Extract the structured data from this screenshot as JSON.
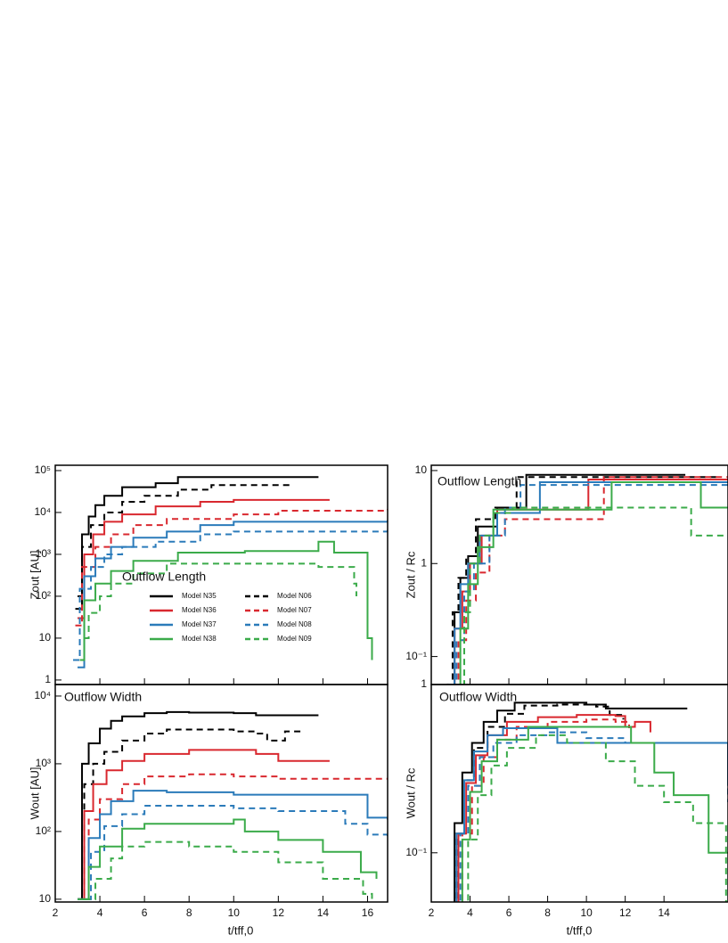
{
  "chart_data": [
    {
      "type": "line",
      "drawstyle": "steps-post",
      "ylog": true,
      "annotation": "Outflow Length",
      "ylabel": "Zout [AU]",
      "xlim": [
        2,
        16.9
      ],
      "ylim": [
        0.78,
        134000
      ],
      "yticks": [
        1,
        10,
        {
          "value": 100,
          "label": "10²"
        },
        {
          "value": 1000,
          "label": "10³"
        },
        {
          "value": 10000,
          "label": "10⁴"
        },
        {
          "value": 100000,
          "label": "10⁵"
        }
      ],
      "legend": true,
      "legend_loc": "lower center",
      "series": [
        {
          "name": "Model N35",
          "color": "#000000",
          "dash": false,
          "x": [
            3.0,
            3.2,
            3.5,
            3.8,
            4.2,
            5,
            6.5,
            7.5,
            13.8
          ],
          "values": [
            100,
            3000,
            8000,
            15000,
            25000,
            40000,
            50000,
            70000,
            70000
          ]
        },
        {
          "name": "Model N06",
          "color": "#000000",
          "dash": true,
          "x": [
            2.9,
            3.2,
            3.6,
            4.2,
            5,
            6,
            7.5,
            9,
            12.5
          ],
          "values": [
            50,
            1500,
            5000,
            10000,
            18000,
            25000,
            35000,
            45000,
            45000
          ]
        },
        {
          "name": "Model N36",
          "color": "#d9282f",
          "dash": false,
          "x": [
            3.0,
            3.3,
            3.7,
            4.2,
            5,
            6.5,
            8.5,
            10,
            14.3
          ],
          "values": [
            30,
            1000,
            3000,
            6000,
            9000,
            14000,
            18000,
            20000,
            20000
          ]
        },
        {
          "name": "Model N07",
          "color": "#d9282f",
          "dash": true,
          "x": [
            2.9,
            3.2,
            3.8,
            4.5,
            5.5,
            7,
            10,
            12,
            16.9
          ],
          "values": [
            20,
            500,
            1500,
            3000,
            5000,
            7000,
            9000,
            11000,
            12000
          ]
        },
        {
          "name": "Model N37",
          "color": "#2b7bba",
          "dash": false,
          "x": [
            3.0,
            3.3,
            3.8,
            4.5,
            5.5,
            7,
            8.5,
            10,
            16.9
          ],
          "values": [
            2,
            300,
            800,
            1500,
            2500,
            3500,
            5000,
            6000,
            6500
          ]
        },
        {
          "name": "Model N08",
          "color": "#2b7bba",
          "dash": true,
          "x": [
            2.8,
            3.1,
            3.6,
            4.2,
            5,
            6.5,
            8.5,
            10,
            16.9
          ],
          "values": [
            3,
            150,
            500,
            1000,
            1500,
            2000,
            3000,
            3500,
            3800
          ]
        },
        {
          "name": "Model N38",
          "color": "#3bab4a",
          "dash": false,
          "x": [
            3.1,
            3.3,
            3.8,
            4.5,
            5.5,
            7.5,
            10.5,
            13.8,
            14.5,
            16,
            16.2
          ],
          "values": [
            3,
            80,
            200,
            400,
            700,
            1100,
            1200,
            2000,
            1100,
            10,
            3
          ]
        },
        {
          "name": "Model N09",
          "color": "#3bab4a",
          "dash": true,
          "x": [
            3.3,
            3.5,
            4,
            4.5,
            5.5,
            7,
            12,
            13.8,
            15.4,
            15.5
          ],
          "values": [
            10,
            40,
            100,
            200,
            350,
            600,
            600,
            500,
            200,
            100
          ]
        }
      ]
    },
    {
      "type": "line",
      "drawstyle": "steps-post",
      "ylog": true,
      "annotation": "Outflow Width",
      "ylabel": "Wout [AU]",
      "xlabel": "t/tff,0",
      "xlim": [
        2,
        16.9
      ],
      "xticks": [
        2,
        4,
        6,
        8,
        10,
        12,
        14,
        16
      ],
      "ylim": [
        9.1,
        14800
      ],
      "yticks": [
        10,
        {
          "value": 100,
          "label": "10²"
        },
        {
          "value": 1000,
          "label": "10³"
        },
        {
          "value": 10000,
          "label": "10⁴"
        }
      ],
      "series": [
        {
          "color": "#000000",
          "dash": false,
          "x": [
            3.0,
            3.2,
            3.5,
            4,
            4.5,
            5,
            6,
            7,
            8,
            10,
            11,
            13.8
          ],
          "values": [
            10,
            1000,
            2000,
            3300,
            4300,
            5000,
            5600,
            5800,
            5700,
            5600,
            5200,
            5200
          ]
        },
        {
          "color": "#000000",
          "dash": true,
          "x": [
            3.0,
            3.3,
            3.7,
            4.2,
            5,
            6,
            7,
            9,
            10,
            11,
            11.5,
            12.3,
            13
          ],
          "values": [
            10,
            500,
            1000,
            1500,
            2200,
            2800,
            3200,
            3200,
            3000,
            2800,
            2200,
            3000,
            2900
          ]
        },
        {
          "color": "#d9282f",
          "dash": false,
          "x": [
            3.0,
            3.3,
            3.7,
            4.3,
            5,
            6,
            8,
            10,
            11,
            12,
            14.3
          ],
          "values": [
            10,
            200,
            500,
            800,
            1100,
            1400,
            1600,
            1600,
            1400,
            1100,
            1100
          ]
        },
        {
          "color": "#d9282f",
          "dash": true,
          "x": [
            3.0,
            3.5,
            4,
            5,
            6,
            8,
            10,
            12,
            14,
            16.9
          ],
          "values": [
            10,
            150,
            300,
            500,
            650,
            700,
            650,
            600,
            600,
            600
          ]
        },
        {
          "color": "#2b7bba",
          "dash": false,
          "x": [
            3.0,
            3.5,
            4,
            4.5,
            5.5,
            7,
            10,
            12,
            15.5,
            16,
            16.9
          ],
          "values": [
            10,
            80,
            180,
            280,
            400,
            380,
            350,
            350,
            350,
            160,
            150
          ]
        },
        {
          "color": "#2b7bba",
          "dash": true,
          "x": [
            3.0,
            3.6,
            4.2,
            5,
            6,
            8,
            10,
            12,
            15,
            16,
            16.9
          ],
          "values": [
            10,
            50,
            120,
            180,
            240,
            240,
            220,
            200,
            130,
            90,
            85
          ]
        },
        {
          "color": "#3bab4a",
          "dash": false,
          "x": [
            3.0,
            3.5,
            4,
            5,
            6,
            8,
            10,
            10.5,
            12,
            14,
            15.7,
            16.4
          ],
          "values": [
            10,
            30,
            60,
            110,
            130,
            130,
            150,
            100,
            75,
            50,
            25,
            20
          ]
        },
        {
          "color": "#3bab4a",
          "dash": true,
          "x": [
            3.3,
            3.8,
            4.5,
            5,
            6,
            8,
            10,
            12,
            14,
            15.8,
            16.2
          ],
          "values": [
            10,
            20,
            40,
            60,
            70,
            60,
            50,
            35,
            20,
            12,
            10
          ]
        }
      ]
    },
    {
      "type": "line",
      "drawstyle": "steps-post",
      "ylog": true,
      "annotation": "Outflow Length",
      "ylabel": "Zout / Rc",
      "xlim": [
        2,
        17.3
      ],
      "ylim": [
        0.05,
        11.4
      ],
      "yticks": [
        {
          "value": 0.1,
          "label": "10⁻¹"
        },
        1,
        10
      ],
      "series": [
        {
          "color": "#000000",
          "dash": false,
          "x": [
            2.9,
            3.2,
            3.5,
            3.9,
            4.4,
            5.4,
            6.9,
            15.1
          ],
          "values": [
            0.05,
            0.3,
            0.7,
            1.2,
            2.5,
            4,
            9,
            9
          ]
        },
        {
          "color": "#000000",
          "dash": true,
          "x": [
            2.8,
            3.1,
            3.4,
            3.8,
            4.3,
            5.3,
            6.4,
            16.8
          ],
          "values": [
            0.05,
            0.3,
            0.7,
            1.2,
            3,
            4,
            8.5,
            8.5
          ]
        },
        {
          "color": "#d9282f",
          "dash": false,
          "x": [
            2.9,
            3.2,
            3.6,
            4,
            4.6,
            5.4,
            10.1,
            17.3
          ],
          "values": [
            0.05,
            0.2,
            0.5,
            1,
            2,
            3.8,
            8,
            8
          ]
        },
        {
          "color": "#d9282f",
          "dash": true,
          "x": [
            3.1,
            3.4,
            3.8,
            4.3,
            5,
            5.8,
            10.9,
            17.3
          ],
          "values": [
            0.05,
            0.15,
            0.4,
            0.8,
            2,
            3,
            8.5,
            8.5
          ]
        },
        {
          "color": "#2b7bba",
          "dash": false,
          "x": [
            2.9,
            3.2,
            3.5,
            3.9,
            4.5,
            5.4,
            7.6,
            17.3
          ],
          "values": [
            0.05,
            0.2,
            0.6,
            1,
            2,
            3.5,
            7.5,
            7.5
          ]
        },
        {
          "color": "#2b7bba",
          "dash": true,
          "x": [
            3.0,
            3.3,
            3.7,
            4.2,
            5,
            5.8,
            6.6,
            17.3
          ],
          "values": [
            0.05,
            0.15,
            0.5,
            1,
            2,
            4,
            7,
            7
          ]
        },
        {
          "color": "#3bab4a",
          "dash": false,
          "x": [
            3.3,
            3.5,
            3.9,
            4.4,
            5.2,
            11.3,
            15.9,
            17.3
          ],
          "values": [
            0.05,
            0.2,
            0.6,
            1.5,
            3.8,
            7.5,
            4,
            4
          ]
        },
        {
          "color": "#3bab4a",
          "dash": true,
          "x": [
            3.6,
            3.7,
            4,
            4.5,
            5.2,
            6.2,
            15.4,
            17.3
          ],
          "values": [
            0.05,
            0.3,
            1,
            2,
            3.5,
            4,
            2,
            2
          ]
        }
      ]
    },
    {
      "type": "line",
      "drawstyle": "steps-post",
      "ylog": true,
      "annotation": "Outflow Width",
      "ylabel": "Wout / Rc",
      "xlabel": "t/tff,0",
      "xlim": [
        2,
        17.3
      ],
      "xticks": [
        2,
        4,
        6,
        8,
        10,
        12,
        14
      ],
      "ylim": [
        0.051,
        1.0
      ],
      "yticks": [
        {
          "value": 0.1,
          "label": "10⁻¹"
        },
        1
      ],
      "series": [
        {
          "color": "#000000",
          "dash": false,
          "x": [
            2.9,
            3.2,
            3.6,
            4.1,
            4.7,
            5.4,
            6.3,
            8,
            10,
            11,
            15.2
          ],
          "values": [
            0.05,
            0.15,
            0.3,
            0.45,
            0.6,
            0.7,
            0.78,
            0.78,
            0.76,
            0.72,
            0.72
          ]
        },
        {
          "color": "#000000",
          "dash": true,
          "x": [
            3.0,
            3.3,
            3.7,
            4.2,
            4.9,
            5.8,
            6.8,
            8.5,
            10.5,
            11.2,
            11.9
          ],
          "values": [
            0.05,
            0.13,
            0.27,
            0.42,
            0.56,
            0.67,
            0.75,
            0.76,
            0.74,
            0.66,
            0.62
          ]
        },
        {
          "color": "#d9282f",
          "dash": false,
          "x": [
            3.1,
            3.4,
            3.8,
            4.3,
            4.9,
            5.9,
            7.5,
            9.5,
            11.5,
            12,
            12.5,
            13.3
          ],
          "values": [
            0.05,
            0.13,
            0.26,
            0.38,
            0.5,
            0.6,
            0.64,
            0.66,
            0.65,
            0.56,
            0.6,
            0.52
          ]
        },
        {
          "color": "#d9282f",
          "dash": true,
          "x": [
            3.2,
            3.6,
            4.1,
            4.7,
            5.4,
            6.4,
            8,
            10,
            11.5,
            12.2
          ],
          "values": [
            0.05,
            0.13,
            0.25,
            0.37,
            0.47,
            0.56,
            0.6,
            0.62,
            0.6,
            0.55
          ]
        },
        {
          "color": "#2b7bba",
          "dash": false,
          "x": [
            3.0,
            3.3,
            3.7,
            4.2,
            4.9,
            5.7,
            8.5,
            17.2,
            17.3
          ],
          "values": [
            0.05,
            0.13,
            0.27,
            0.4,
            0.5,
            0.55,
            0.45,
            0.45,
            0.25
          ]
        },
        {
          "color": "#2b7bba",
          "dash": true,
          "x": [
            3.1,
            3.5,
            3.9,
            4.5,
            5.2,
            6.4,
            8,
            10,
            12,
            15.8,
            17.3
          ],
          "values": [
            0.05,
            0.13,
            0.25,
            0.37,
            0.45,
            0.5,
            0.52,
            0.48,
            0.45,
            0.45,
            0.2
          ]
        },
        {
          "color": "#3bab4a",
          "dash": false,
          "x": [
            3.2,
            3.6,
            4,
            4.6,
            5.4,
            7,
            11.5,
            12.3,
            13.5,
            14.5,
            16.3,
            17.3
          ],
          "values": [
            0.05,
            0.12,
            0.23,
            0.35,
            0.47,
            0.56,
            0.56,
            0.45,
            0.3,
            0.22,
            0.1,
            0.1
          ]
        },
        {
          "color": "#3bab4a",
          "dash": true,
          "x": [
            3.5,
            3.9,
            4.4,
            5.1,
            5.9,
            7.4,
            9,
            11,
            12.5,
            14,
            15.5,
            17.2
          ],
          "values": [
            0.05,
            0.12,
            0.22,
            0.33,
            0.42,
            0.5,
            0.45,
            0.35,
            0.25,
            0.2,
            0.15,
            0.05
          ]
        }
      ]
    }
  ]
}
